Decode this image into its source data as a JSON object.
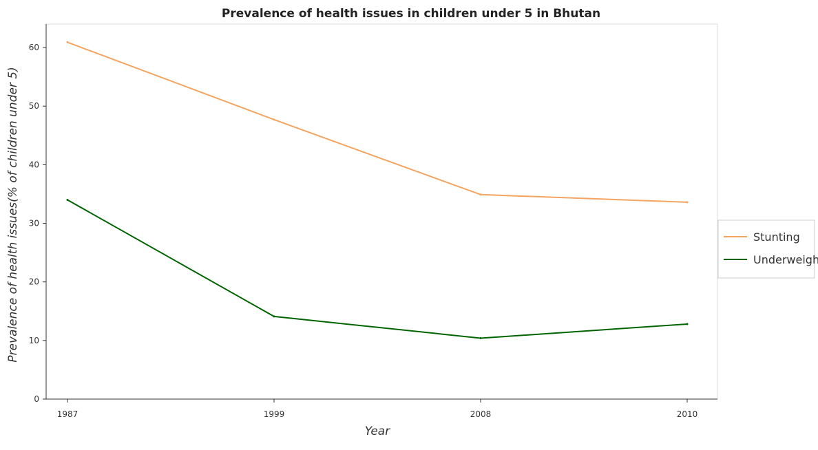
{
  "chart_data": {
    "type": "line",
    "title": "Prevalence of health issues in children under 5 in Bhutan",
    "xlabel": "Year",
    "ylabel": "Prevalence of health issues(% of children under 5)",
    "categories": [
      "1987",
      "1999",
      "2008",
      "2010"
    ],
    "y_ticks": [
      "0",
      "10",
      "20",
      "30",
      "40",
      "50",
      "60"
    ],
    "ylim": [
      0,
      64
    ],
    "grid": false,
    "legend_position": "right",
    "series": [
      {
        "name": "Stunting",
        "color": "#f4a460",
        "values": [
          60.9,
          47.7,
          34.9,
          33.6
        ]
      },
      {
        "name": "Underweight",
        "color": "#006400",
        "values": [
          34.0,
          14.1,
          10.4,
          12.8
        ]
      }
    ]
  }
}
